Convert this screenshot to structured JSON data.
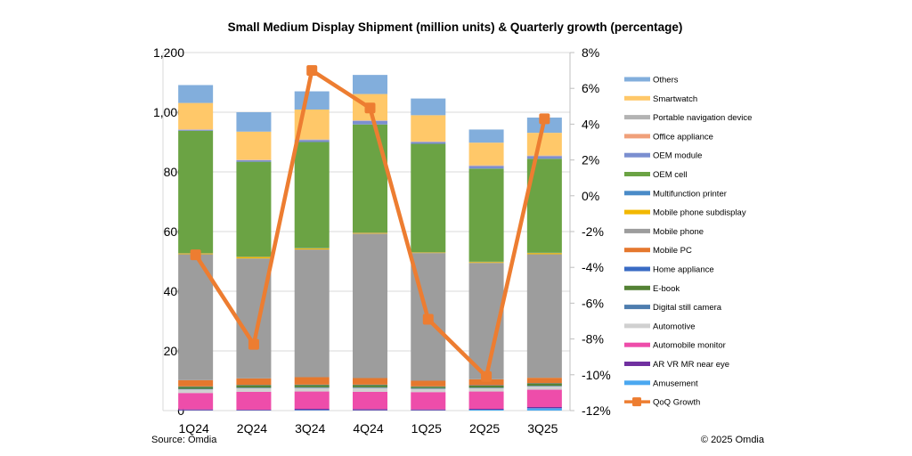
{
  "chart_data": {
    "type": "bar",
    "stacked": true,
    "title": "Small Medium Display Shipment (million units) & Quarterly growth (percentage)",
    "categories": [
      "1Q24",
      "2Q24",
      "3Q24",
      "4Q24",
      "1Q25",
      "2Q25",
      "3Q25"
    ],
    "y_left": {
      "ylim": [
        0,
        1200
      ],
      "ticks": [
        0,
        200,
        400,
        600,
        800,
        1000,
        1200
      ],
      "tick_labels": [
        "0",
        "200",
        "400",
        "600",
        "800",
        "1,000",
        "1,200"
      ]
    },
    "y_right": {
      "ylim": [
        -12,
        8
      ],
      "ticks": [
        -12,
        -10,
        -8,
        -6,
        -4,
        -2,
        0,
        2,
        4,
        6,
        8
      ],
      "tick_labels": [
        "-12%",
        "-10%",
        "-8%",
        "-6%",
        "-4%",
        "-2%",
        "0%",
        "2%",
        "4%",
        "6%",
        "8%"
      ]
    },
    "grid": true,
    "legend_position": "right",
    "series": [
      {
        "name": "Amusement",
        "color": "#4BA8F0",
        "values": [
          1,
          1,
          2,
          1,
          1,
          3,
          8
        ]
      },
      {
        "name": "AR VR MR near eye",
        "color": "#7030A0",
        "values": [
          3,
          2,
          4,
          4,
          3,
          3,
          4
        ]
      },
      {
        "name": "Automobile monitor",
        "color": "#EE4DAA",
        "values": [
          55,
          60,
          58,
          58,
          58,
          58,
          58
        ]
      },
      {
        "name": "Automotive",
        "color": "#D0D0D0",
        "values": [
          12,
          12,
          12,
          13,
          11,
          11,
          11
        ]
      },
      {
        "name": "Digital still camera",
        "color": "#4E7DAE",
        "values": [
          2,
          2,
          2,
          2,
          2,
          2,
          2
        ]
      },
      {
        "name": "E-book",
        "color": "#548235",
        "values": [
          7,
          8,
          8,
          8,
          5,
          7,
          8
        ]
      },
      {
        "name": "Home appliance",
        "color": "#3A6BC4",
        "values": [
          1,
          1,
          1,
          1,
          1,
          1,
          1
        ]
      },
      {
        "name": "Mobile PC",
        "color": "#E5782E",
        "values": [
          21,
          22,
          25,
          22,
          19,
          20,
          18
        ]
      },
      {
        "name": "Mobile phone",
        "color": "#9D9D9D",
        "values": [
          422,
          402,
          428,
          484,
          428,
          390,
          414
        ]
      },
      {
        "name": "Mobile phone subdisplay",
        "color": "#F2B800",
        "values": [
          3,
          5,
          4,
          3,
          2,
          3,
          4
        ]
      },
      {
        "name": "Multifunction printer",
        "color": "#4A8BC8",
        "values": [
          1,
          1,
          1,
          1,
          1,
          1,
          1
        ]
      },
      {
        "name": "OEM cell",
        "color": "#6BA344",
        "values": [
          410,
          318,
          355,
          362,
          363,
          312,
          315
        ]
      },
      {
        "name": "OEM module",
        "color": "#7B8FD0",
        "values": [
          3,
          5,
          7,
          12,
          6,
          9,
          9
        ]
      },
      {
        "name": "Office appliance",
        "color": "#F0A07A",
        "values": [
          1,
          1,
          1,
          1,
          1,
          1,
          1
        ]
      },
      {
        "name": "Portable navigation device",
        "color": "#B3B3B3",
        "values": [
          1,
          1,
          1,
          1,
          1,
          1,
          1
        ]
      },
      {
        "name": "Smartwatch",
        "color": "#FFC869",
        "values": [
          88,
          94,
          100,
          88,
          88,
          76,
          76
        ]
      },
      {
        "name": "Others",
        "color": "#82AEDC",
        "values": [
          60,
          65,
          61,
          64,
          56,
          44,
          51
        ]
      }
    ],
    "line_series": {
      "name": "QoQ Growth",
      "color": "#ED7D31",
      "axis": "right",
      "unit": "%",
      "values": [
        -3.3,
        -8.3,
        7.0,
        4.9,
        -6.9,
        -10.1,
        4.3
      ]
    },
    "legend_order": [
      "Others",
      "Smartwatch",
      "Portable navigation device",
      "Office appliance",
      "OEM module",
      "OEM cell",
      "Multifunction printer",
      "Mobile phone subdisplay",
      "Mobile phone",
      "Mobile PC",
      "Home appliance",
      "E-book",
      "Digital still camera",
      "Automotive",
      "Automobile monitor",
      "AR VR MR near eye",
      "Amusement",
      "QoQ Growth"
    ],
    "source": "Source: Omdia",
    "copyright": "© 2025 Omdia"
  }
}
